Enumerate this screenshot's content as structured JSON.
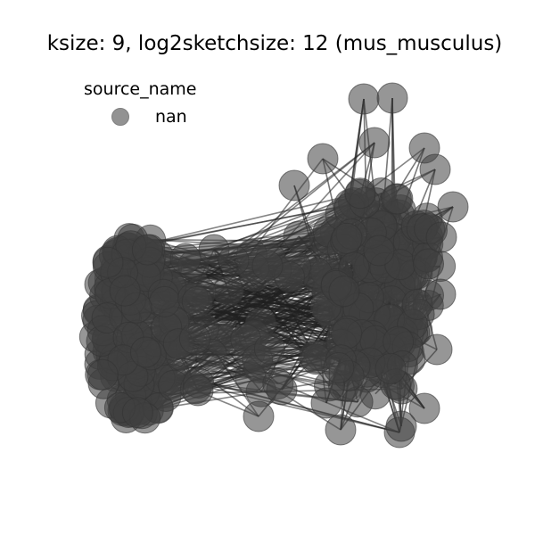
{
  "figure": {
    "title": "ksize: 9, log2sketchsize: 12 (mus_musculus)",
    "legend_title": "source_name",
    "legend_entries": [
      {
        "label": "nan",
        "color": "#808080"
      }
    ]
  },
  "style": {
    "node_color": "#404040",
    "edge_color": "#202020",
    "background": "#ffffff"
  }
}
